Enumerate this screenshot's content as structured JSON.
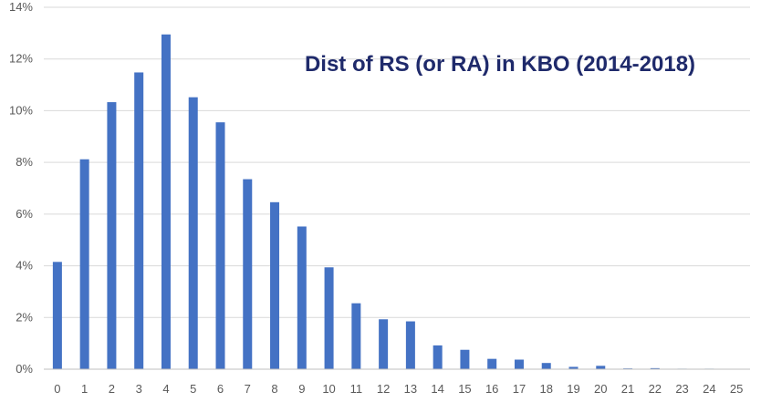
{
  "chart_data": {
    "type": "bar",
    "title": "Dist of RS (or RA) in KBO (2014-2018)",
    "xlabel": "",
    "ylabel": "",
    "categories": [
      "0",
      "1",
      "2",
      "3",
      "4",
      "5",
      "6",
      "7",
      "8",
      "9",
      "10",
      "11",
      "12",
      "13",
      "14",
      "15",
      "16",
      "17",
      "18",
      "19",
      "20",
      "21",
      "22",
      "23",
      "24",
      "25"
    ],
    "values": [
      4.15,
      8.12,
      10.33,
      11.48,
      12.95,
      10.52,
      9.55,
      7.35,
      6.46,
      5.52,
      3.94,
      2.55,
      1.93,
      1.85,
      0.92,
      0.75,
      0.4,
      0.37,
      0.24,
      0.09,
      0.13,
      0.03,
      0.04,
      0.02,
      0.02,
      0.01
    ],
    "ylim": [
      0,
      14
    ],
    "yticks": [
      0,
      2,
      4,
      6,
      8,
      10,
      12,
      14
    ],
    "ytick_labels": [
      "0%",
      "2%",
      "4%",
      "6%",
      "8%",
      "10%",
      "12%",
      "14%"
    ],
    "grid": true,
    "legend": "none",
    "bar_color": "#4472c4",
    "title_color": "#1f2a6b"
  }
}
